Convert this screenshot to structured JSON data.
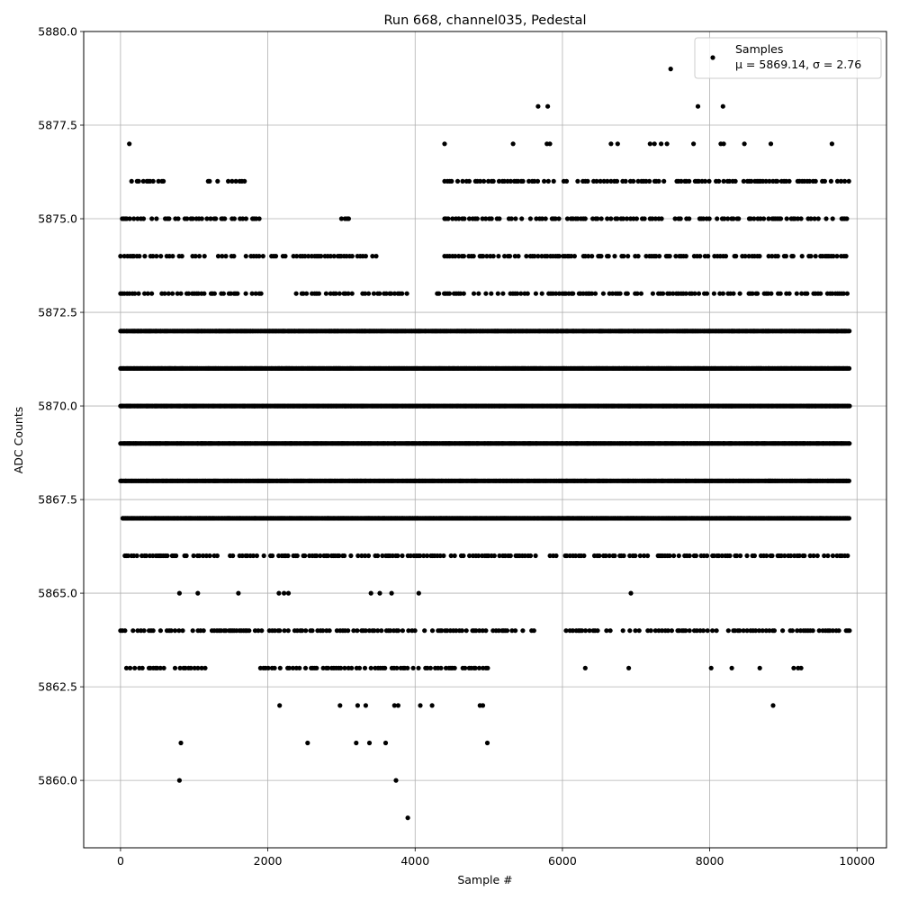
{
  "chart_data": {
    "type": "scatter",
    "title": "Run 668, channel035, Pedestal",
    "xlabel": "Sample #",
    "ylabel": "ADC Counts",
    "xlim": [
      -500,
      10400
    ],
    "ylim": [
      5858.2,
      5880.0
    ],
    "grid": true,
    "x_ticks": [
      0,
      2000,
      4000,
      6000,
      8000,
      10000
    ],
    "x_tick_labels": [
      "0",
      "2000",
      "4000",
      "6000",
      "8000",
      "10000"
    ],
    "y_ticks": [
      5860.0,
      5862.5,
      5865.0,
      5867.5,
      5870.0,
      5872.5,
      5875.0,
      5877.5,
      5880.0
    ],
    "y_tick_labels": [
      "5860.0",
      "5862.5",
      "5865.0",
      "5867.5",
      "5870.0",
      "5872.5",
      "5875.0",
      "5877.5",
      "5880.0"
    ],
    "legend_placement": "top-right",
    "legend_entries": [
      "Samples",
      "μ = 5869.14, σ = 2.76"
    ],
    "marker_color": "#000000",
    "n_samples": 9900,
    "series": [
      {
        "name": "Samples",
        "levels": [
          {
            "y": 5868,
            "ranges": [
              [
                0,
                9900
              ]
            ]
          },
          {
            "y": 5869,
            "ranges": [
              [
                0,
                9900
              ]
            ]
          },
          {
            "y": 5870,
            "ranges": [
              [
                0,
                9900
              ]
            ]
          },
          {
            "y": 5871,
            "ranges": [
              [
                0,
                9900
              ]
            ]
          },
          {
            "y": 5872,
            "ranges": [
              [
                0,
                9900
              ]
            ]
          },
          {
            "y": 5867,
            "ranges": [
              [
                30,
                9900
              ]
            ]
          },
          {
            "y": 5866,
            "ranges": [
              [
                60,
                9900
              ]
            ]
          },
          {
            "y": 5864,
            "ranges": [
              [
                0,
                5650
              ],
              [
                6050,
                9900
              ]
            ]
          },
          {
            "y": 5873,
            "ranges": [
              [
                0,
                1950
              ],
              [
                2350,
                3900
              ],
              [
                4300,
                9900
              ]
            ]
          },
          {
            "y": 5874,
            "ranges": [
              [
                0,
                1950
              ],
              [
                2050,
                3500
              ],
              [
                4400,
                9900
              ]
            ]
          },
          {
            "y": 5863,
            "ranges": [
              [
                80,
                1200
              ],
              [
                1900,
                5000
              ]
            ]
          },
          {
            "y": 5875,
            "ranges": [
              [
                0,
                1900
              ],
              [
                3000,
                3100
              ],
              [
                4400,
                9900
              ]
            ]
          },
          {
            "y": 5876,
            "ranges": [
              [
                150,
                600
              ],
              [
                1150,
                1700
              ],
              [
                4400,
                9900
              ]
            ]
          }
        ],
        "points": [
          [
            800,
            5860
          ],
          [
            3740,
            5860
          ],
          [
            3900,
            5859
          ],
          [
            820,
            5861
          ],
          [
            2540,
            5861
          ],
          [
            3200,
            5861
          ],
          [
            3380,
            5861
          ],
          [
            3600,
            5861
          ],
          [
            4980,
            5861
          ],
          [
            2160,
            5862
          ],
          [
            2980,
            5862
          ],
          [
            3220,
            5862
          ],
          [
            3330,
            5862
          ],
          [
            3720,
            5862
          ],
          [
            3770,
            5862
          ],
          [
            4070,
            5862
          ],
          [
            4230,
            5862
          ],
          [
            4880,
            5862
          ],
          [
            4920,
            5862
          ],
          [
            8860,
            5862
          ],
          [
            6310,
            5863
          ],
          [
            6900,
            5863
          ],
          [
            8020,
            5863
          ],
          [
            8300,
            5863
          ],
          [
            8680,
            5863
          ],
          [
            9140,
            5863
          ],
          [
            9200,
            5863
          ],
          [
            9240,
            5863
          ],
          [
            800,
            5865
          ],
          [
            1050,
            5865
          ],
          [
            1600,
            5865
          ],
          [
            2150,
            5865
          ],
          [
            2220,
            5865
          ],
          [
            2280,
            5865
          ],
          [
            3400,
            5865
          ],
          [
            3520,
            5865
          ],
          [
            3680,
            5865
          ],
          [
            4050,
            5865
          ],
          [
            6930,
            5865
          ],
          [
            120,
            5877
          ],
          [
            4400,
            5877
          ],
          [
            5330,
            5877
          ],
          [
            5790,
            5877
          ],
          [
            5830,
            5877
          ],
          [
            6660,
            5877
          ],
          [
            6750,
            5877
          ],
          [
            7190,
            5877
          ],
          [
            7250,
            5877
          ],
          [
            7340,
            5877
          ],
          [
            7420,
            5877
          ],
          [
            7780,
            5877
          ],
          [
            8150,
            5877
          ],
          [
            8190,
            5877
          ],
          [
            8470,
            5877
          ],
          [
            8830,
            5877
          ],
          [
            9660,
            5877
          ],
          [
            5670,
            5878
          ],
          [
            5800,
            5878
          ],
          [
            7840,
            5878
          ],
          [
            8180,
            5878
          ],
          [
            7470,
            5879
          ]
        ]
      }
    ]
  }
}
